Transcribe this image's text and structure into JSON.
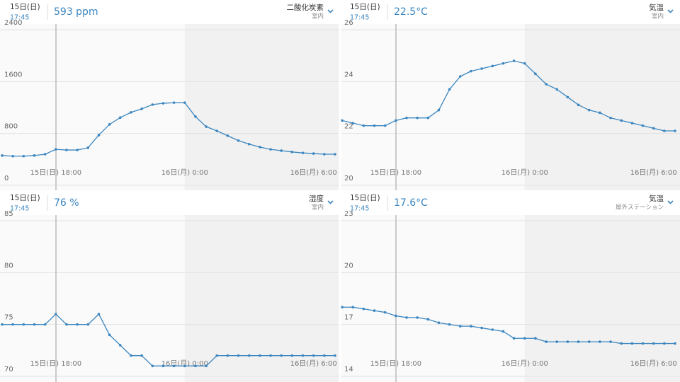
{
  "chart_data": [
    {
      "type": "line",
      "date": "15日(日)",
      "time": "17:45",
      "reading": "593 ppm",
      "metric": "二酸化炭素",
      "location": "室内",
      "categories": [
        null,
        null,
        null,
        null,
        null,
        "15日(日) 18:00",
        null,
        null,
        null,
        null,
        null,
        null,
        null,
        null,
        null,
        null,
        null,
        "16日(月) 0:00",
        null,
        null,
        null,
        null,
        null,
        null,
        null,
        null,
        null,
        null,
        null,
        "16日(月) 6:00",
        null,
        null
      ],
      "values": [
        460,
        450,
        450,
        460,
        480,
        555,
        545,
        545,
        580,
        775,
        940,
        1045,
        1125,
        1180,
        1245,
        1265,
        1275,
        1275,
        1060,
        905,
        840,
        765,
        690,
        635,
        590,
        555,
        535,
        515,
        500,
        490,
        480,
        480
      ],
      "color": "#3b86c0",
      "ylim": [
        0,
        2400
      ],
      "yticks": [
        0,
        800,
        1600,
        2400
      ],
      "grid": true
    },
    {
      "type": "line",
      "date": "15日(日)",
      "time": "17:45",
      "reading": "22.5°C",
      "metric": "気温",
      "location": "室内",
      "categories": [
        null,
        null,
        null,
        null,
        null,
        "15日(日) 18:00",
        null,
        null,
        null,
        null,
        null,
        null,
        null,
        null,
        null,
        null,
        null,
        "16日(月) 0:00",
        null,
        null,
        null,
        null,
        null,
        null,
        null,
        null,
        null,
        null,
        null,
        "16日(月) 6:00",
        null,
        null
      ],
      "values": [
        22.5,
        22.4,
        22.3,
        22.3,
        22.3,
        22.5,
        22.6,
        22.6,
        22.6,
        22.9,
        23.7,
        24.2,
        24.4,
        24.5,
        24.6,
        24.7,
        24.8,
        24.7,
        24.3,
        23.9,
        23.7,
        23.4,
        23.1,
        22.9,
        22.8,
        22.6,
        22.5,
        22.4,
        22.3,
        22.2,
        22.1,
        22.1
      ],
      "color": "#3b86c0",
      "ylim": [
        20,
        26
      ],
      "yticks": [
        20,
        22,
        24,
        26
      ],
      "grid": true
    },
    {
      "type": "line",
      "date": "15日(日)",
      "time": "17:45",
      "reading": "76 %",
      "metric": "湿度",
      "location": "室内",
      "categories": [
        null,
        null,
        null,
        null,
        null,
        "15日(日) 18:00",
        null,
        null,
        null,
        null,
        null,
        null,
        null,
        null,
        null,
        null,
        null,
        "16日(月) 0:00",
        null,
        null,
        null,
        null,
        null,
        null,
        null,
        null,
        null,
        null,
        null,
        "16日(月) 6:00",
        null,
        null
      ],
      "values": [
        75,
        75,
        75,
        75,
        75,
        76,
        75,
        75,
        75,
        76,
        74,
        73,
        72,
        72,
        71,
        71,
        71,
        71,
        71,
        71,
        72,
        72,
        72,
        72,
        72,
        72,
        72,
        72,
        72,
        72,
        72,
        72
      ],
      "color": "#3b86c0",
      "ylim": [
        70,
        85
      ],
      "yticks": [
        70,
        75,
        80,
        85
      ],
      "grid": true
    },
    {
      "type": "line",
      "date": "15日(日)",
      "time": "17:45",
      "reading": "17.6°C",
      "metric": "気温",
      "location": "屋外ステーション",
      "categories": [
        null,
        null,
        null,
        null,
        null,
        "15日(日) 18:00",
        null,
        null,
        null,
        null,
        null,
        null,
        null,
        null,
        null,
        null,
        null,
        "16日(月) 0:00",
        null,
        null,
        null,
        null,
        null,
        null,
        null,
        null,
        null,
        null,
        null,
        "16日(月) 6:00",
        null,
        null
      ],
      "values": [
        18.0,
        18.0,
        17.9,
        17.8,
        17.7,
        17.5,
        17.4,
        17.4,
        17.3,
        17.1,
        17.0,
        16.9,
        16.9,
        16.8,
        16.7,
        16.6,
        16.2,
        16.2,
        16.2,
        16.0,
        16.0,
        16.0,
        16.0,
        16.0,
        16.0,
        16.0,
        15.9,
        15.9,
        15.9,
        15.9,
        15.9,
        15.9
      ],
      "color": "#3b86c0",
      "ylim": [
        14,
        23
      ],
      "yticks": [
        14,
        17,
        20,
        23
      ],
      "grid": true
    }
  ]
}
